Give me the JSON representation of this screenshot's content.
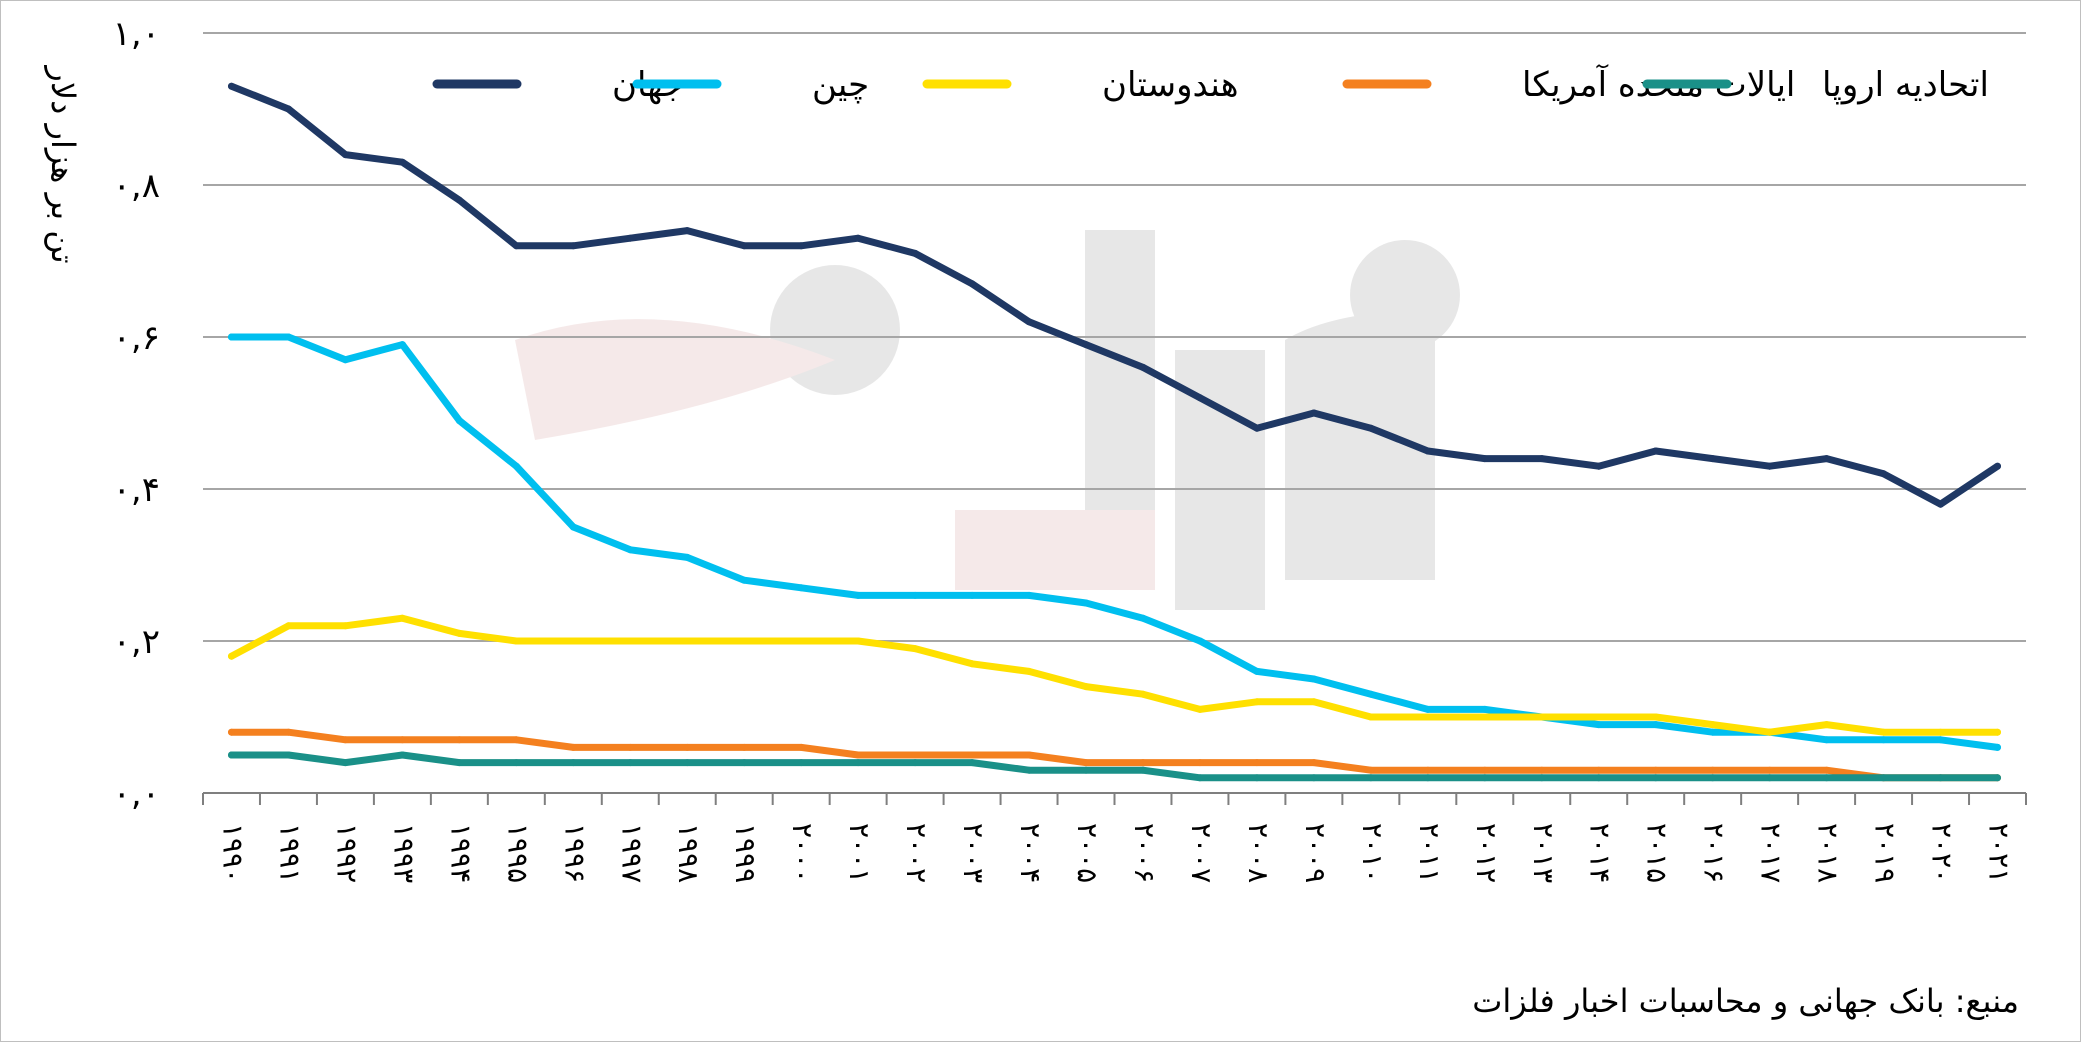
{
  "chart_data": {
    "type": "line",
    "ylabel": "تن بر هزار دلار",
    "ylim": [
      0,
      1.0
    ],
    "y_ticks": [
      0,
      0.2,
      0.4,
      0.6,
      0.8,
      1.0
    ],
    "y_tick_labels": [
      "۰,۰",
      "۰,۲",
      "۰,۴",
      "۰,۶",
      "۰,۸",
      "۱,۰"
    ],
    "x": [
      1990,
      1991,
      1992,
      1993,
      1994,
      1995,
      1996,
      1997,
      1998,
      1999,
      2000,
      2001,
      2002,
      2003,
      2004,
      2005,
      2006,
      2007,
      2008,
      2009,
      2010,
      2011,
      2012,
      2013,
      2014,
      2015,
      2016,
      2017,
      2018,
      2019,
      2020,
      2021
    ],
    "x_tick_labels": [
      "۱۹۹۰",
      "۱۹۹۱",
      "۱۹۹۲",
      "۱۹۹۳",
      "۱۹۹۴",
      "۱۹۹۵",
      "۱۹۹۶",
      "۱۹۹۷",
      "۱۹۹۸",
      "۱۹۹۹",
      "۲۰۰۰",
      "۲۰۰۱",
      "۲۰۰۲",
      "۲۰۰۳",
      "۲۰۰۴",
      "۲۰۰۵",
      "۲۰۰۶",
      "۲۰۰۷",
      "۲۰۰۸",
      "۲۰۰۹",
      "۲۰۱۰",
      "۲۰۱۱",
      "۲۰۱۲",
      "۲۰۱۳",
      "۲۰۱۴",
      "۲۰۱۵",
      "۲۰۱۶",
      "۲۰۱۷",
      "۲۰۱۸",
      "۲۰۱۹",
      "۲۰۲۰",
      "۲۰۲۱"
    ],
    "grid": true,
    "legend_position": "top",
    "series": [
      {
        "name": "جهان",
        "color": "#1F3864",
        "values": [
          0.93,
          0.9,
          0.84,
          0.83,
          0.78,
          0.72,
          0.72,
          0.73,
          0.74,
          0.72,
          0.72,
          0.73,
          0.71,
          0.67,
          0.62,
          0.59,
          0.56,
          0.52,
          0.48,
          0.5,
          0.48,
          0.45,
          0.44,
          0.44,
          0.43,
          0.45,
          0.44,
          0.43,
          0.44,
          0.42,
          0.38,
          0.43
        ]
      },
      {
        "name": "چین",
        "color": "#00BFEF",
        "values": [
          0.6,
          0.6,
          0.57,
          0.59,
          0.49,
          0.43,
          0.35,
          0.32,
          0.31,
          0.28,
          0.27,
          0.26,
          0.26,
          0.26,
          0.26,
          0.25,
          0.23,
          0.2,
          0.16,
          0.15,
          0.13,
          0.11,
          0.11,
          0.1,
          0.09,
          0.09,
          0.08,
          0.08,
          0.07,
          0.07,
          0.07,
          0.06
        ]
      },
      {
        "name": "هندوستان",
        "color": "#FFE000",
        "values": [
          0.18,
          0.22,
          0.22,
          0.23,
          0.21,
          0.2,
          0.2,
          0.2,
          0.2,
          0.2,
          0.2,
          0.2,
          0.19,
          0.17,
          0.16,
          0.14,
          0.13,
          0.11,
          0.12,
          0.12,
          0.1,
          0.1,
          0.1,
          0.1,
          0.1,
          0.1,
          0.09,
          0.08,
          0.09,
          0.08,
          0.08,
          0.08
        ]
      },
      {
        "name": "ایالات متحده آمریکا",
        "color": "#F4801F",
        "values": [
          0.08,
          0.08,
          0.07,
          0.07,
          0.07,
          0.07,
          0.06,
          0.06,
          0.06,
          0.06,
          0.06,
          0.05,
          0.05,
          0.05,
          0.05,
          0.04,
          0.04,
          0.04,
          0.04,
          0.04,
          0.03,
          0.03,
          0.03,
          0.03,
          0.03,
          0.03,
          0.03,
          0.03,
          0.03,
          0.02,
          0.02,
          0.02
        ]
      },
      {
        "name": "اتحادیه اروپا",
        "color": "#1A9088",
        "values": [
          0.05,
          0.05,
          0.04,
          0.05,
          0.04,
          0.04,
          0.04,
          0.04,
          0.04,
          0.04,
          0.04,
          0.04,
          0.04,
          0.04,
          0.03,
          0.03,
          0.03,
          0.02,
          0.02,
          0.02,
          0.02,
          0.02,
          0.02,
          0.02,
          0.02,
          0.02,
          0.02,
          0.02,
          0.02,
          0.02,
          0.02,
          0.02
        ]
      }
    ]
  },
  "source": {
    "text": "منبع:  بانک جهانی و محاسبات اخبار فلزات"
  }
}
